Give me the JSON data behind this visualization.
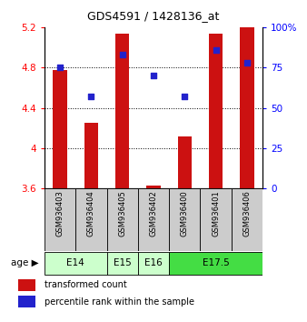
{
  "title": "GDS4591 / 1428136_at",
  "samples": [
    "GSM936403",
    "GSM936404",
    "GSM936405",
    "GSM936402",
    "GSM936400",
    "GSM936401",
    "GSM936406"
  ],
  "red_bar_tops": [
    4.78,
    4.25,
    5.14,
    3.63,
    4.12,
    5.14,
    5.2
  ],
  "blue_dot_percentile": [
    75,
    57,
    83,
    70,
    57,
    86,
    78
  ],
  "bar_bottom": 3.6,
  "ylim_left": [
    3.6,
    5.2
  ],
  "ylim_right": [
    0,
    100
  ],
  "yticks_left": [
    3.6,
    4.0,
    4.4,
    4.8,
    5.2
  ],
  "yticks_right": [
    0,
    25,
    50,
    75,
    100
  ],
  "ytick_labels_left": [
    "3.6",
    "4",
    "4.4",
    "4.8",
    "5.2"
  ],
  "ytick_labels_right": [
    "0",
    "25",
    "50",
    "75",
    "100%"
  ],
  "hgrid_vals": [
    4.0,
    4.4,
    4.8
  ],
  "sample_box_color": "#cccccc",
  "bar_color": "#cc1111",
  "dot_color": "#2222cc",
  "groups": [
    {
      "label": "E14",
      "start": 0,
      "end": 1,
      "color": "#ccffcc"
    },
    {
      "label": "E15",
      "start": 2,
      "end": 2,
      "color": "#ccffcc"
    },
    {
      "label": "E16",
      "start": 3,
      "end": 3,
      "color": "#ccffcc"
    },
    {
      "label": "E17.5",
      "start": 4,
      "end": 6,
      "color": "#44dd44"
    }
  ],
  "legend_items": [
    {
      "color": "#cc1111",
      "label": "transformed count"
    },
    {
      "color": "#2222cc",
      "label": "percentile rank within the sample"
    }
  ],
  "bar_width": 0.45
}
